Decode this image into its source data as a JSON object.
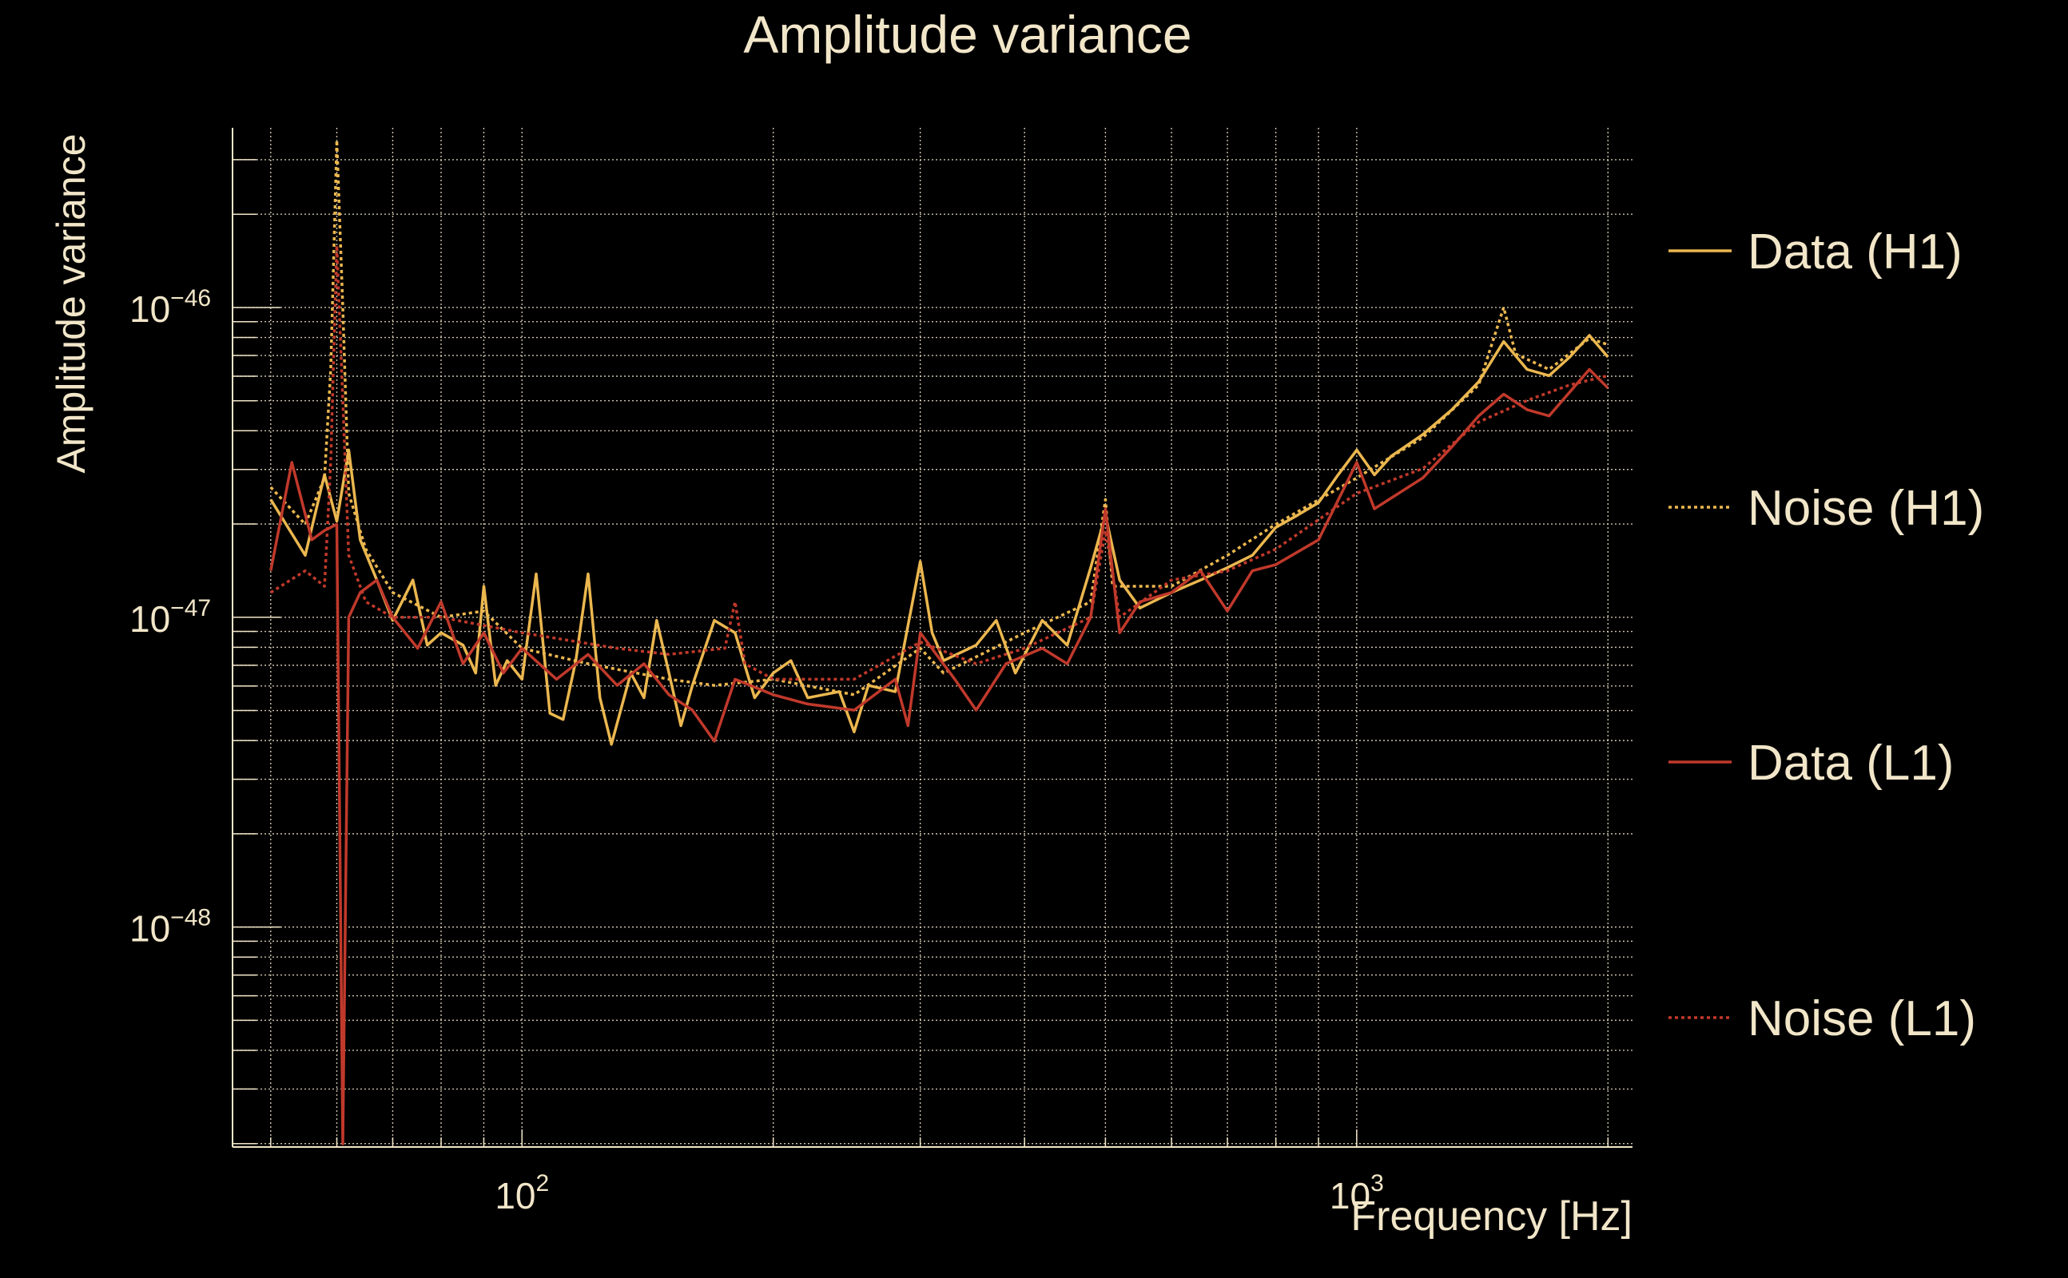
{
  "chart_data": {
    "type": "line",
    "title": "Amplitude variance",
    "xlabel": "Frequency [Hz]",
    "ylabel": "Amplitude variance",
    "xscale": "log",
    "yscale": "log",
    "xlim": [
      45,
      2140
    ],
    "ylim_log10": [
      -48.71,
      -45.42
    ],
    "grid": true,
    "legend_position": "right",
    "x_tick_labels": [
      {
        "value": 100,
        "base": "10",
        "exp": "2"
      },
      {
        "value": 1000,
        "base": "10",
        "exp": "3"
      }
    ],
    "y_tick_labels": [
      {
        "log10": -46,
        "base": "10",
        "exp": "−46"
      },
      {
        "log10": -47,
        "base": "10",
        "exp": "−47"
      },
      {
        "log10": -48,
        "base": "10",
        "exp": "−48"
      }
    ],
    "value_note": "series y values are log10(amplitude variance)",
    "series": [
      {
        "name": "Data (H1)",
        "color": "#ebb74f",
        "style": "solid",
        "x": [
          50,
          55,
          58,
          60,
          62,
          64,
          67,
          70,
          74,
          77,
          80,
          85,
          88,
          90,
          93,
          96,
          100,
          104,
          108,
          112,
          116,
          120,
          124,
          128,
          135,
          140,
          145,
          150,
          155,
          160,
          170,
          180,
          190,
          200,
          210,
          220,
          240,
          250,
          260,
          280,
          300,
          310,
          320,
          350,
          370,
          390,
          420,
          450,
          480,
          500,
          520,
          550,
          600,
          650,
          700,
          750,
          800,
          850,
          900,
          950,
          1000,
          1050,
          1100,
          1200,
          1300,
          1400,
          1500,
          1600,
          1700,
          1800,
          1900,
          2000
        ],
        "y": [
          -46.62,
          -46.8,
          -46.54,
          -46.69,
          -46.46,
          -46.75,
          -46.88,
          -47.01,
          -46.88,
          -47.09,
          -47.05,
          -47.09,
          -47.18,
          -46.9,
          -47.22,
          -47.14,
          -47.2,
          -46.86,
          -47.31,
          -47.33,
          -47.14,
          -46.86,
          -47.26,
          -47.41,
          -47.18,
          -47.26,
          -47.01,
          -47.18,
          -47.35,
          -47.22,
          -47.01,
          -47.05,
          -47.26,
          -47.18,
          -47.14,
          -47.26,
          -47.24,
          -47.37,
          -47.22,
          -47.24,
          -46.82,
          -47.05,
          -47.14,
          -47.09,
          -47.01,
          -47.18,
          -47.01,
          -47.09,
          -46.84,
          -46.67,
          -46.88,
          -46.97,
          -46.92,
          -46.88,
          -46.84,
          -46.8,
          -46.71,
          -46.67,
          -46.63,
          -46.54,
          -46.46,
          -46.54,
          -46.48,
          -46.41,
          -46.33,
          -46.24,
          -46.11,
          -46.2,
          -46.22,
          -46.16,
          -46.09,
          -46.16
        ]
      },
      {
        "name": "Noise (H1)",
        "color": "#ebb74f",
        "style": "dotted",
        "x": [
          50,
          55,
          58,
          59,
          60,
          61,
          62,
          65,
          70,
          80,
          90,
          100,
          120,
          150,
          170,
          200,
          250,
          300,
          320,
          400,
          480,
          500,
          510,
          600,
          700,
          800,
          1000,
          1200,
          1400,
          1500,
          1550,
          1700,
          1900,
          2000
        ],
        "y": [
          -46.58,
          -46.7,
          -46.55,
          -46.2,
          -45.46,
          -46.0,
          -46.6,
          -46.78,
          -46.92,
          -47.0,
          -46.98,
          -47.1,
          -47.15,
          -47.2,
          -47.22,
          -47.2,
          -47.25,
          -47.1,
          -47.18,
          -47.05,
          -46.95,
          -46.62,
          -46.9,
          -46.9,
          -46.8,
          -46.7,
          -46.55,
          -46.42,
          -46.25,
          -46.0,
          -46.15,
          -46.2,
          -46.1,
          -46.12
        ]
      },
      {
        "name": "Data (L1)",
        "color": "#c0392b",
        "style": "solid",
        "x": [
          50,
          53,
          56,
          58,
          60,
          61,
          62,
          64,
          67,
          70,
          75,
          80,
          85,
          90,
          95,
          100,
          110,
          120,
          130,
          140,
          150,
          160,
          170,
          180,
          200,
          220,
          250,
          280,
          290,
          300,
          330,
          350,
          380,
          420,
          450,
          480,
          500,
          520,
          550,
          600,
          650,
          700,
          750,
          800,
          900,
          1000,
          1050,
          1200,
          1300,
          1400,
          1500,
          1600,
          1700,
          1900,
          2000
        ],
        "y": [
          -46.85,
          -46.5,
          -46.75,
          -46.72,
          -46.7,
          -48.7,
          -47.0,
          -46.92,
          -46.88,
          -47.0,
          -47.1,
          -46.95,
          -47.15,
          -47.05,
          -47.18,
          -47.1,
          -47.2,
          -47.12,
          -47.22,
          -47.15,
          -47.25,
          -47.3,
          -47.4,
          -47.2,
          -47.25,
          -47.28,
          -47.3,
          -47.2,
          -47.35,
          -47.05,
          -47.2,
          -47.3,
          -47.15,
          -47.1,
          -47.15,
          -47.0,
          -46.65,
          -47.05,
          -46.95,
          -46.92,
          -46.85,
          -46.98,
          -46.85,
          -46.83,
          -46.75,
          -46.5,
          -46.65,
          -46.55,
          -46.45,
          -46.35,
          -46.28,
          -46.33,
          -46.35,
          -46.2,
          -46.26
        ]
      },
      {
        "name": "Noise (L1)",
        "color": "#c0392b",
        "style": "dotted",
        "x": [
          50,
          55,
          58,
          59,
          60,
          61,
          62,
          65,
          70,
          80,
          100,
          130,
          150,
          175,
          180,
          185,
          200,
          250,
          300,
          350,
          400,
          480,
          500,
          520,
          600,
          700,
          800,
          1000,
          1200,
          1400,
          1600,
          1800,
          2000
        ],
        "y": [
          -46.92,
          -46.85,
          -46.9,
          -46.5,
          -45.8,
          -46.3,
          -46.8,
          -46.95,
          -47.0,
          -47.0,
          -47.05,
          -47.1,
          -47.12,
          -47.1,
          -46.95,
          -47.15,
          -47.2,
          -47.2,
          -47.08,
          -47.15,
          -47.1,
          -47.0,
          -46.72,
          -47.0,
          -46.88,
          -46.85,
          -46.78,
          -46.6,
          -46.52,
          -46.37,
          -46.3,
          -46.25,
          -46.22
        ]
      }
    ]
  }
}
